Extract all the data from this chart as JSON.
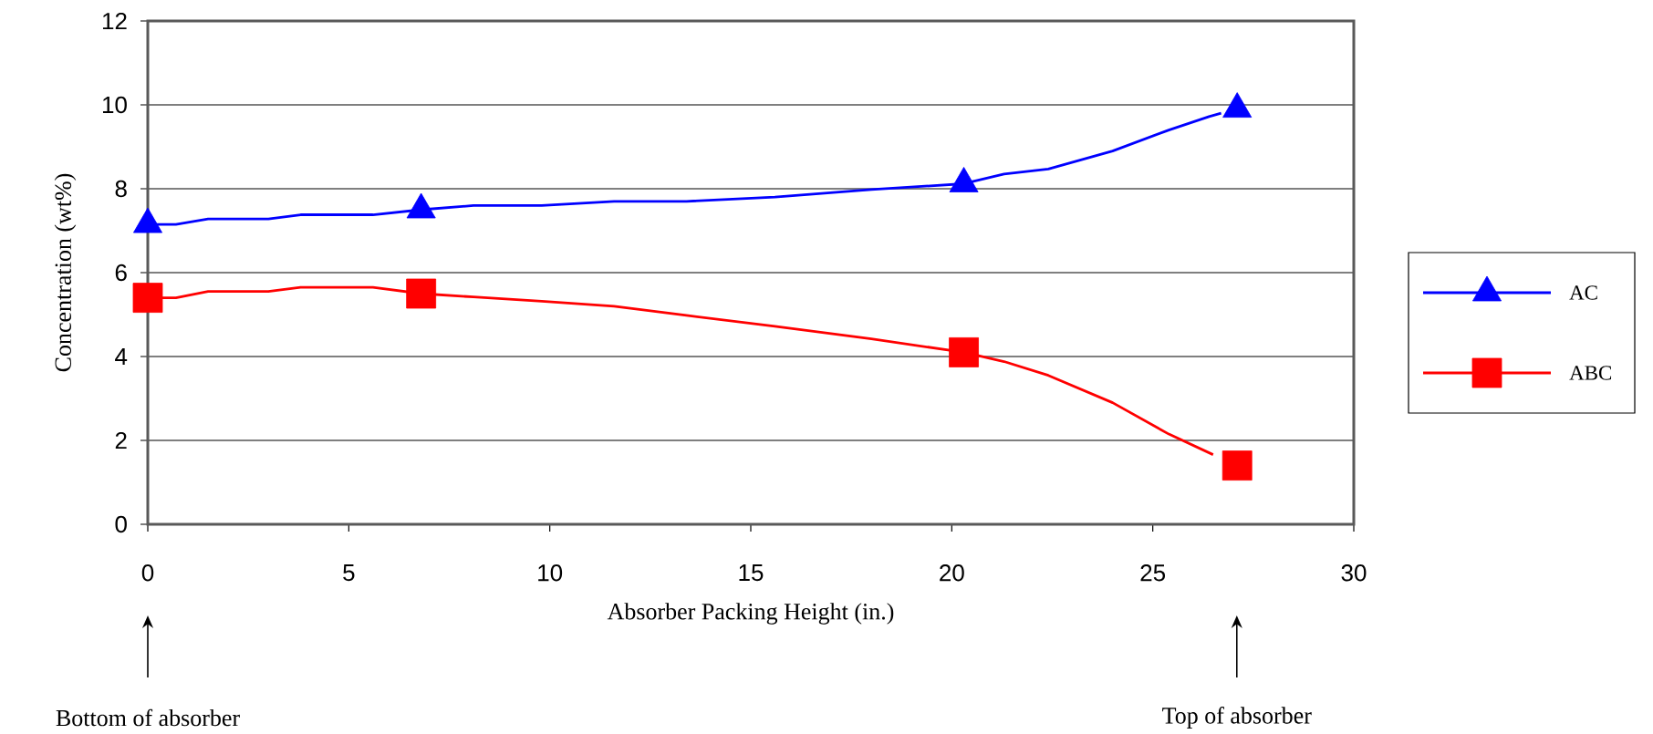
{
  "chart_data": {
    "type": "line",
    "xlabel": "Absorber Packing Height (in.)",
    "ylabel": "Concentration (wt%)",
    "xlim": [
      0,
      30
    ],
    "xticks": [
      0,
      5,
      10,
      15,
      20,
      25,
      30
    ],
    "ylim": [
      0,
      12
    ],
    "yticks": [
      0,
      2,
      4,
      6,
      8,
      10,
      12
    ],
    "grid": "y",
    "legend": "right",
    "line_style": "solid",
    "series": [
      {
        "name": "AC",
        "color": "#0000ff",
        "marker": "none",
        "x": [
          0,
          0.7,
          1.5,
          3,
          3.8,
          5.6,
          6.8,
          8.1,
          9.8,
          11.6,
          13.4,
          15.6,
          18,
          20.3,
          21.3,
          22.4,
          24,
          25.4,
          26.4,
          26.7
        ],
        "values": [
          7.15,
          7.15,
          7.28,
          7.28,
          7.38,
          7.38,
          7.5,
          7.6,
          7.6,
          7.7,
          7.7,
          7.8,
          7.98,
          8.12,
          8.35,
          8.47,
          8.9,
          9.4,
          9.72,
          9.8
        ]
      },
      {
        "type": "scatter",
        "color": "#0000ff",
        "marker": "triangle",
        "x": [
          0,
          6.8,
          20.3,
          27.1
        ],
        "values": [
          7.15,
          7.5,
          8.12,
          9.9
        ]
      },
      {
        "name": "ABC",
        "color": "#ff0000",
        "marker": "none",
        "x": [
          0,
          0.7,
          1.5,
          3,
          3.8,
          5.6,
          6.8,
          8.1,
          9.8,
          11.6,
          13.4,
          15.6,
          18,
          20.3,
          21.3,
          22.4,
          24,
          25.4,
          26.5
        ],
        "values": [
          5.4,
          5.4,
          5.55,
          5.55,
          5.65,
          5.65,
          5.5,
          5.42,
          5.32,
          5.2,
          4.98,
          4.72,
          4.42,
          4.1,
          3.88,
          3.55,
          2.9,
          2.15,
          1.66
        ]
      },
      {
        "type": "scatter",
        "color": "#ff0000",
        "marker": "square",
        "x": [
          0,
          6.8,
          20.3,
          27.1
        ],
        "values": [
          5.4,
          5.5,
          4.1,
          1.4
        ]
      }
    ],
    "annotations": [
      "Bottom of absorber",
      "Top of absorber"
    ]
  }
}
